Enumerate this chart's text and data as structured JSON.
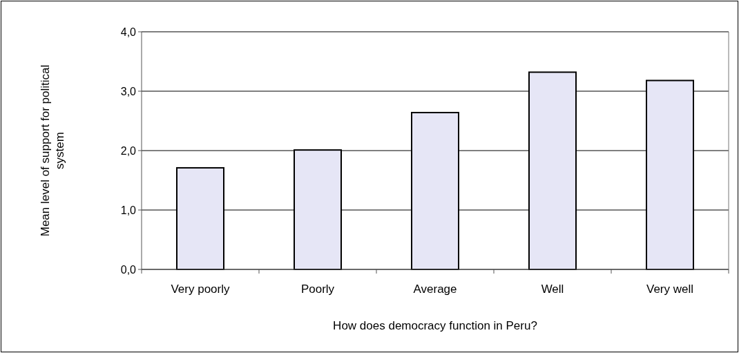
{
  "chart_data": {
    "type": "bar",
    "xlabel": "How does democracy function in Peru?",
    "ylabel": "Mean level of support for political system",
    "categories": [
      "Very poorly",
      "Poorly",
      "Average",
      "Well",
      "Very well"
    ],
    "values": [
      1.71,
      2.01,
      2.64,
      3.32,
      3.18
    ],
    "color": "#e6e6f6",
    "ylim": [
      0,
      4
    ],
    "yticks": [
      {
        "value": 0,
        "label": "0,0"
      },
      {
        "value": 1,
        "label": "1,0"
      },
      {
        "value": 2,
        "label": "2,0"
      },
      {
        "value": 3,
        "label": "3,0"
      },
      {
        "value": 4,
        "label": "4,0"
      }
    ],
    "grid": "y"
  }
}
